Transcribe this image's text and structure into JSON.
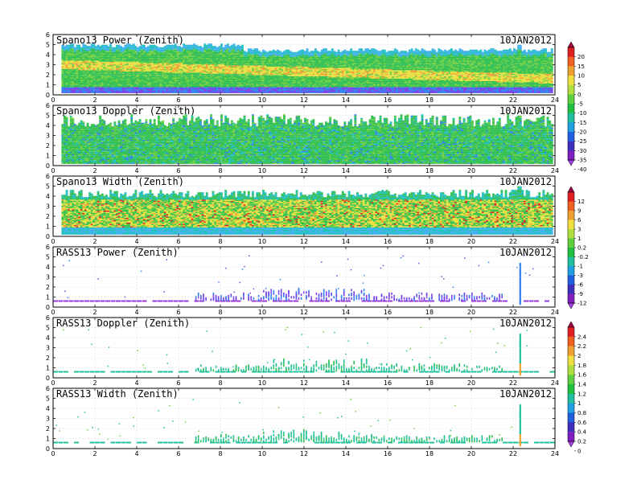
{
  "chart_data": [
    {
      "type": "heatmap",
      "title": "Spano13 Power (Zenith)",
      "date": "10JAN2012",
      "xlim": [
        0,
        24
      ],
      "ylim": [
        0,
        6
      ],
      "xticks": [
        "0",
        "2",
        "4",
        "6",
        "8",
        "10",
        "12",
        "14",
        "16",
        "18",
        "20",
        "22",
        "24"
      ],
      "yticks": [
        "0",
        "1",
        "2",
        "3",
        "4",
        "5",
        "6"
      ],
      "colorbar": "power",
      "grid": true
    },
    {
      "type": "heatmap",
      "title": "Spano13 Doppler (Zenith)",
      "date": "10JAN2012",
      "xlim": [
        0,
        24
      ],
      "ylim": [
        0,
        6
      ],
      "xticks": [
        "0",
        "2",
        "4",
        "6",
        "8",
        "10",
        "12",
        "14",
        "16",
        "18",
        "20",
        "22",
        "24"
      ],
      "yticks": [
        "0",
        "1",
        "2",
        "3",
        "4",
        "5",
        "6"
      ],
      "colorbar": "power",
      "grid": true
    },
    {
      "type": "heatmap",
      "title": "Spano13 Width (Zenith)",
      "date": "10JAN2012",
      "xlim": [
        0,
        24
      ],
      "ylim": [
        0,
        6
      ],
      "xticks": [
        "0",
        "2",
        "4",
        "6",
        "8",
        "10",
        "12",
        "14",
        "16",
        "18",
        "20",
        "22",
        "24"
      ],
      "yticks": [
        "0",
        "1",
        "2",
        "3",
        "4",
        "5",
        "6"
      ],
      "colorbar": "width",
      "grid": true
    },
    {
      "type": "heatmap",
      "title": "RASS13 Power (Zenith)",
      "date": "10JAN2012",
      "xlim": [
        0,
        24
      ],
      "ylim": [
        0,
        6
      ],
      "xticks": [
        "0",
        "2",
        "4",
        "6",
        "8",
        "10",
        "12",
        "14",
        "16",
        "18",
        "20",
        "22",
        "24"
      ],
      "yticks": [
        "0",
        "1",
        "2",
        "3",
        "4",
        "5",
        "6"
      ],
      "colorbar": "width",
      "grid": true
    },
    {
      "type": "heatmap",
      "title": "RASS13 Doppler (Zenith)",
      "date": "10JAN2012",
      "xlim": [
        0,
        24
      ],
      "ylim": [
        0,
        6
      ],
      "xticks": [
        "0",
        "2",
        "4",
        "6",
        "8",
        "10",
        "12",
        "14",
        "16",
        "18",
        "20",
        "22",
        "24"
      ],
      "yticks": [
        "0",
        "1",
        "2",
        "3",
        "4",
        "5",
        "6"
      ],
      "colorbar": "rass",
      "grid": true
    },
    {
      "type": "heatmap",
      "title": "RASS13 Width (Zenith)",
      "date": "10JAN2012",
      "xlim": [
        0,
        24
      ],
      "ylim": [
        0,
        6
      ],
      "xticks": [
        "0",
        "2",
        "4",
        "6",
        "8",
        "10",
        "12",
        "14",
        "16",
        "18",
        "20",
        "22",
        "24"
      ],
      "yticks": [
        "0",
        "1",
        "2",
        "3",
        "4",
        "5",
        "6"
      ],
      "colorbar": "rass",
      "grid": true
    }
  ],
  "colorbars": {
    "power": {
      "labels": [
        "20",
        "15",
        "10",
        "5",
        "0",
        "-5",
        "-10",
        "-15",
        "-20",
        "-25",
        "-30",
        "-35",
        "-40"
      ],
      "colors": [
        "#a00040",
        "#e02020",
        "#f06020",
        "#f0a030",
        "#f0e040",
        "#b0e040",
        "#60d040",
        "#20c040",
        "#20c0a0",
        "#20a0e0",
        "#2060e0",
        "#4030c0",
        "#8020c0",
        "#a040e0"
      ]
    },
    "width": {
      "labels": [
        "12",
        "9",
        "6",
        "3",
        "1",
        "0.2",
        "-0.2",
        "-1",
        "-3",
        "-6",
        "-9",
        "-12"
      ],
      "colors": [
        "#a00040",
        "#e02020",
        "#f06020",
        "#f0a030",
        "#f0e040",
        "#b0e040",
        "#60d040",
        "#20c040",
        "#20c0a0",
        "#20a0e0",
        "#2060e0",
        "#4030c0",
        "#8020c0",
        "#a040e0"
      ]
    },
    "rass": {
      "labels": [
        "2.4",
        "2.2",
        "2",
        "1.8",
        "1.6",
        "1.4",
        "1.2",
        "1",
        "0.8",
        "0.6",
        "0.4",
        "0.2",
        "0"
      ],
      "colors": [
        "#a00040",
        "#e02020",
        "#f06020",
        "#f0a030",
        "#f0e040",
        "#b0e040",
        "#60d040",
        "#20c040",
        "#20c0a0",
        "#20a0e0",
        "#2060e0",
        "#4030c0",
        "#8020c0",
        "#a040e0"
      ]
    }
  }
}
